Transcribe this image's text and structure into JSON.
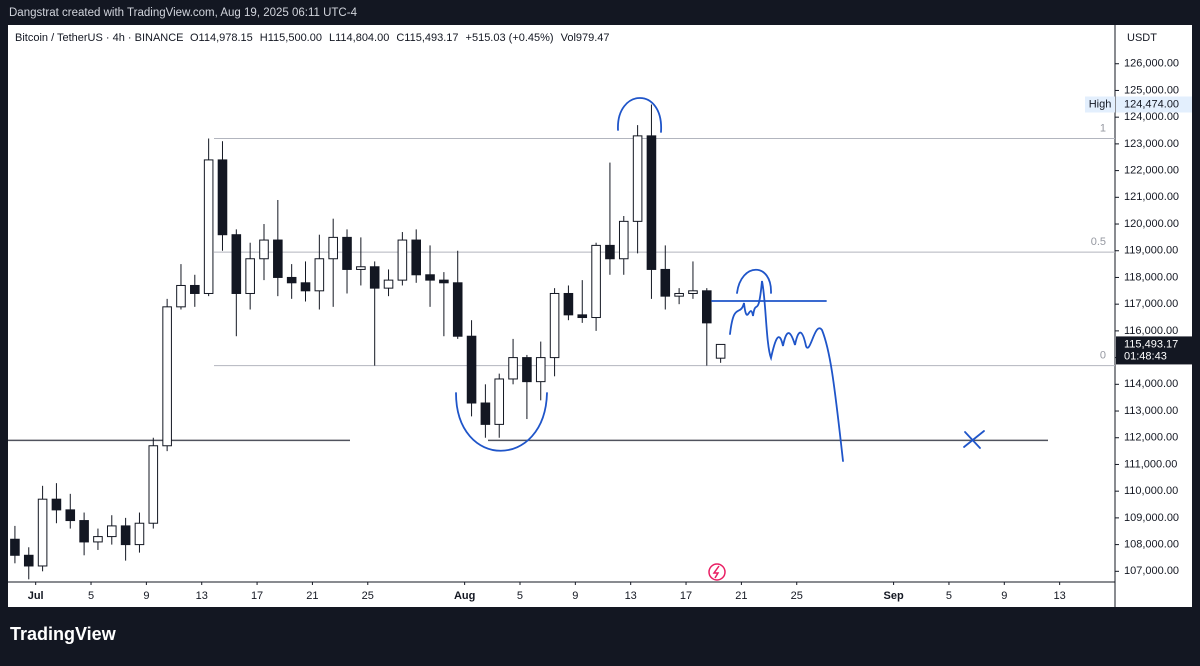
{
  "header": {
    "credit": "Dangstrat created with TradingView.com, Aug 19, 2025 06:11 UTC-4",
    "brand": "TradingView"
  },
  "chart_data": {
    "type": "candlestick",
    "symbol": "Bitcoin / TetherUS · 4h · BINANCE",
    "ohlc_labels": [
      "O114,978.15",
      "H115,500.00",
      "L114,804.00",
      "C115,493.17",
      "+515.03 (+0.45%)",
      "Vol979.47"
    ],
    "currency": "USDT",
    "x": [
      "Jun 29",
      "Jun 30",
      "Jul 1",
      "Jul 2",
      "Jul 3",
      "Jul 4",
      "Jul 5",
      "Jul 6",
      "Jul 7",
      "Jul 8",
      "Jul 9",
      "Jul 10",
      "Jul 11",
      "Jul 12",
      "Jul 13",
      "Jul 14",
      "Jul 15",
      "Jul 16",
      "Jul 17",
      "Jul 18",
      "Jul 19",
      "Jul 20",
      "Jul 21",
      "Jul 22",
      "Jul 23",
      "Jul 24",
      "Jul 25",
      "Jul 26",
      "Jul 27",
      "Jul 28",
      "Jul 29",
      "Jul 30",
      "Jul 31",
      "Aug 1",
      "Aug 2",
      "Aug 3",
      "Aug 4",
      "Aug 5",
      "Aug 6",
      "Aug 7",
      "Aug 8",
      "Aug 9",
      "Aug 10",
      "Aug 11",
      "Aug 12",
      "Aug 13",
      "Aug 14",
      "Aug 15",
      "Aug 16",
      "Aug 17",
      "Aug 18",
      "Aug 19"
    ],
    "open": [
      108200,
      107600,
      107200,
      109700,
      109300,
      108900,
      108100,
      108300,
      108700,
      108000,
      108800,
      111700,
      116900,
      117700,
      117400,
      122400,
      119600,
      117400,
      118700,
      119400,
      118000,
      117800,
      117500,
      118700,
      119500,
      118300,
      118400,
      117600,
      117900,
      119400,
      118100,
      117900,
      117800,
      115800,
      113300,
      112500,
      114200,
      115000,
      114100,
      115000,
      117400,
      116600,
      116500,
      119200,
      118700,
      120100,
      123300,
      118300,
      117300,
      117400,
      117500,
      114978.15
    ],
    "high": [
      108700,
      107900,
      110200,
      110300,
      109900,
      109200,
      108600,
      109100,
      109000,
      109200,
      112000,
      117200,
      118500,
      118100,
      123200,
      123100,
      119800,
      119300,
      120000,
      120900,
      118500,
      118600,
      119600,
      120200,
      119800,
      119500,
      118600,
      118300,
      119700,
      119800,
      119200,
      118200,
      119000,
      116400,
      114000,
      114400,
      115700,
      115100,
      115600,
      117600,
      117700,
      117900,
      119300,
      122300,
      120300,
      123700,
      124474,
      119200,
      117600,
      118600,
      117600,
      115500
    ],
    "low": [
      107300,
      106700,
      107000,
      108800,
      108600,
      107600,
      107800,
      108000,
      107400,
      107700,
      108600,
      111500,
      116800,
      116900,
      117300,
      119000,
      115800,
      116800,
      117900,
      117300,
      117200,
      117100,
      116800,
      116900,
      117400,
      117700,
      114700,
      117300,
      117700,
      117800,
      116900,
      115800,
      115700,
      112800,
      112000,
      112000,
      114000,
      112700,
      113400,
      114300,
      116400,
      116300,
      116000,
      118100,
      118100,
      118900,
      117200,
      116800,
      117000,
      117200,
      114700,
      114804
    ],
    "close": [
      107600,
      107200,
      109700,
      109300,
      108900,
      108100,
      108300,
      108700,
      108000,
      108800,
      111700,
      116900,
      117700,
      117400,
      122400,
      119600,
      117400,
      118700,
      119400,
      118000,
      117800,
      117500,
      118700,
      119500,
      118300,
      118400,
      117600,
      117900,
      119400,
      118100,
      117900,
      117800,
      115800,
      113300,
      112500,
      114200,
      115000,
      114100,
      115000,
      117400,
      116600,
      116500,
      119200,
      118700,
      120100,
      123300,
      118300,
      117300,
      117400,
      117500,
      116300,
      115493.17
    ],
    "up_color": "#ffffff",
    "down_color": "#131722",
    "xlim": [
      "Jun 29",
      "Sep 17"
    ],
    "xticks": [
      {
        "value": "Jul 1",
        "label": "Jul"
      },
      {
        "value": "Jul 5",
        "label": "5"
      },
      {
        "value": "Jul 9",
        "label": "9"
      },
      {
        "value": "Jul 13",
        "label": "13"
      },
      {
        "value": "Jul 17",
        "label": "17"
      },
      {
        "value": "Jul 21",
        "label": "21"
      },
      {
        "value": "Jul 25",
        "label": "25"
      },
      {
        "value": "Aug 1",
        "label": "Aug"
      },
      {
        "value": "Aug 5",
        "label": "5"
      },
      {
        "value": "Aug 9",
        "label": "9"
      },
      {
        "value": "Aug 13",
        "label": "13"
      },
      {
        "value": "Aug 17",
        "label": "17"
      },
      {
        "value": "Aug 21",
        "label": "21"
      },
      {
        "value": "Aug 25",
        "label": "25"
      },
      {
        "value": "Sep 1",
        "label": "Sep"
      },
      {
        "value": "Sep 5",
        "label": "5"
      },
      {
        "value": "Sep 9",
        "label": "9"
      },
      {
        "value": "Sep 13",
        "label": "13"
      }
    ],
    "ylim": [
      106600,
      127450
    ],
    "yticks": [
      {
        "value": 107000,
        "label": "107,000.00"
      },
      {
        "value": 108000,
        "label": "108,000.00"
      },
      {
        "value": 109000,
        "label": "109,000.00"
      },
      {
        "value": 110000,
        "label": "110,000.00"
      },
      {
        "value": 111000,
        "label": "111,000.00"
      },
      {
        "value": 112000,
        "label": "112,000.00"
      },
      {
        "value": 113000,
        "label": "113,000.00"
      },
      {
        "value": 114000,
        "label": "114,000.00"
      },
      {
        "value": 115000,
        "label": "115,000.00"
      },
      {
        "value": 116000,
        "label": "116,000.00"
      },
      {
        "value": 117000,
        "label": "117,000.00"
      },
      {
        "value": 118000,
        "label": "118,000.00"
      },
      {
        "value": 119000,
        "label": "119,000.00"
      },
      {
        "value": 120000,
        "label": "120,000.00"
      },
      {
        "value": 121000,
        "label": "121,000.00"
      },
      {
        "value": 122000,
        "label": "122,000.00"
      },
      {
        "value": 123000,
        "label": "123,000.00"
      },
      {
        "value": 124000,
        "label": "124,000.00"
      },
      {
        "value": 125000,
        "label": "125,000.00"
      },
      {
        "value": 126000,
        "label": "126,000.00"
      }
    ],
    "fib_levels": [
      {
        "label": "1",
        "value": 123200
      },
      {
        "label": "0.5",
        "value": 118950
      },
      {
        "label": "0",
        "value": 114700
      }
    ],
    "support_line": 111900,
    "high_marker": {
      "text": "High",
      "value": 124474,
      "label": "124,474.00"
    },
    "last_price": {
      "value": 115493.17,
      "label": "115,493.17",
      "countdown": "01:48:43"
    }
  }
}
